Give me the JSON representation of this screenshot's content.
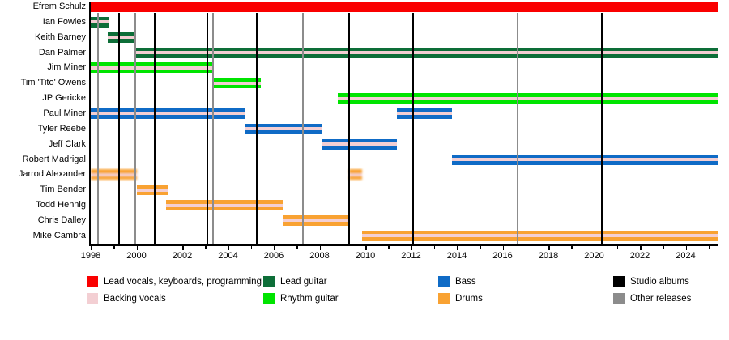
{
  "chart_data": {
    "type": "timeline",
    "description": "Band members timeline (gantt-style) with studio album and other release markers",
    "x_axis": {
      "start_year": 1998,
      "end_year": 2025.4,
      "labeled_ticks": [
        1998,
        2000,
        2002,
        2004,
        2006,
        2008,
        2010,
        2012,
        2014,
        2016,
        2018,
        2020,
        2022,
        2024
      ],
      "minor_ticks": [
        1999,
        2001,
        2003,
        2005,
        2007,
        2009,
        2011,
        2013,
        2015,
        2017,
        2019,
        2021,
        2023,
        2025
      ]
    },
    "members": [
      {
        "name": "Efrem Schulz",
        "role": "lead_vocals",
        "backing_vocals": false,
        "fuzzy": false,
        "periods": [
          [
            1998.0,
            2025.4
          ]
        ]
      },
      {
        "name": "Ian Fowles",
        "role": "lead_guitar",
        "backing_vocals": true,
        "fuzzy": false,
        "periods": [
          [
            1998.0,
            1998.8
          ]
        ]
      },
      {
        "name": "Keith Barney",
        "role": "lead_guitar",
        "backing_vocals": true,
        "fuzzy": false,
        "periods": [
          [
            1998.73,
            2000.0
          ]
        ]
      },
      {
        "name": "Dan Palmer",
        "role": "lead_guitar",
        "backing_vocals": true,
        "fuzzy": false,
        "periods": [
          [
            1999.95,
            2025.4
          ]
        ]
      },
      {
        "name": "Jim Miner",
        "role": "rhythm_guitar",
        "backing_vocals": true,
        "fuzzy": false,
        "periods": [
          [
            1998.0,
            2003.3
          ]
        ]
      },
      {
        "name": "Tim 'Tito' Owens",
        "role": "rhythm_guitar",
        "backing_vocals": true,
        "fuzzy": false,
        "periods": [
          [
            2003.3,
            2005.45
          ]
        ]
      },
      {
        "name": "JP Gericke",
        "role": "rhythm_guitar",
        "backing_vocals": true,
        "fuzzy": false,
        "periods": [
          [
            2008.78,
            2025.4
          ]
        ]
      },
      {
        "name": "Paul Miner",
        "role": "bass",
        "backing_vocals": true,
        "fuzzy": false,
        "periods": [
          [
            1998.0,
            2004.74
          ],
          [
            2011.38,
            2013.78
          ]
        ]
      },
      {
        "name": "Tyler Reebe",
        "role": "bass",
        "backing_vocals": true,
        "fuzzy": false,
        "periods": [
          [
            2004.74,
            2008.13
          ]
        ]
      },
      {
        "name": "Jeff Clark",
        "role": "bass",
        "backing_vocals": true,
        "fuzzy": false,
        "periods": [
          [
            2008.13,
            2011.38
          ]
        ]
      },
      {
        "name": "Robert Madrigal",
        "role": "bass",
        "backing_vocals": true,
        "fuzzy": false,
        "periods": [
          [
            2013.78,
            2025.4
          ]
        ]
      },
      {
        "name": "Jarrod Alexander",
        "role": "drums",
        "backing_vocals": true,
        "fuzzy": true,
        "periods": [
          [
            1998.0,
            2000.0
          ],
          [
            2009.3,
            2009.85
          ]
        ]
      },
      {
        "name": "Tim Bender",
        "role": "drums",
        "backing_vocals": true,
        "fuzzy": false,
        "periods": [
          [
            2000.0,
            2001.35
          ]
        ]
      },
      {
        "name": "Todd Hennig",
        "role": "drums",
        "backing_vocals": true,
        "fuzzy": false,
        "periods": [
          [
            2001.3,
            2006.4
          ]
        ]
      },
      {
        "name": "Chris Dalley",
        "role": "drums",
        "backing_vocals": true,
        "fuzzy": false,
        "periods": [
          [
            2006.4,
            2009.25
          ]
        ]
      },
      {
        "name": "Mike Cambra",
        "role": "drums",
        "backing_vocals": true,
        "fuzzy": false,
        "periods": [
          [
            2009.85,
            2025.4
          ]
        ]
      }
    ],
    "releases": [
      {
        "year": 1998.33,
        "kind": "other"
      },
      {
        "year": 1999.25,
        "kind": "studio"
      },
      {
        "year": 1999.96,
        "kind": "other"
      },
      {
        "year": 2000.8,
        "kind": "studio"
      },
      {
        "year": 2003.1,
        "kind": "studio"
      },
      {
        "year": 2003.33,
        "kind": "other"
      },
      {
        "year": 2005.25,
        "kind": "studio"
      },
      {
        "year": 2007.26,
        "kind": "other"
      },
      {
        "year": 2009.3,
        "kind": "studio"
      },
      {
        "year": 2012.1,
        "kind": "studio"
      },
      {
        "year": 2016.64,
        "kind": "other"
      },
      {
        "year": 2020.33,
        "kind": "studio"
      }
    ],
    "colors": {
      "lead_vocals": "#FA0000",
      "backing_vocals": "#F3CFD3",
      "lead_guitar": "#0D6E38",
      "rhythm_guitar": "#00E400",
      "bass": "#0F6BC6",
      "drums": "#F9A232",
      "studio": "#000000",
      "other": "#8C8C8C"
    },
    "legend": [
      {
        "label": "Lead vocals, keyboards, programming",
        "color_key": "lead_vocals",
        "col": 0,
        "row": 0
      },
      {
        "label": "Backing vocals",
        "color_key": "backing_vocals",
        "col": 0,
        "row": 1
      },
      {
        "label": "Lead guitar",
        "color_key": "lead_guitar",
        "col": 1,
        "row": 0
      },
      {
        "label": "Rhythm guitar",
        "color_key": "rhythm_guitar",
        "col": 1,
        "row": 1
      },
      {
        "label": "Bass",
        "color_key": "bass",
        "col": 2,
        "row": 0
      },
      {
        "label": "Drums",
        "color_key": "drums",
        "col": 2,
        "row": 1
      },
      {
        "label": "Studio albums",
        "color_key": "studio",
        "col": 3,
        "row": 0
      },
      {
        "label": "Other releases",
        "color_key": "other",
        "col": 3,
        "row": 1
      }
    ]
  }
}
